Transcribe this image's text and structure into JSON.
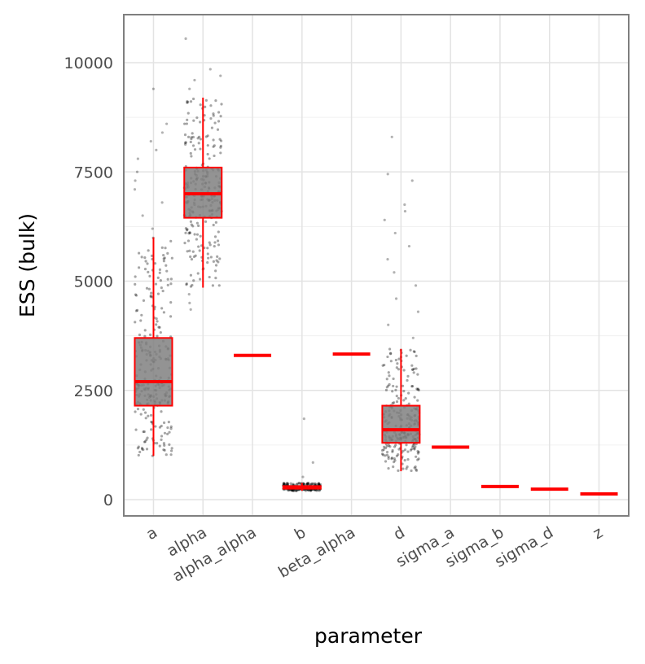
{
  "chart_data": {
    "type": "boxplot",
    "xlabel": "parameter",
    "ylabel": "ESS (bulk)",
    "ylim": [
      -400,
      11000
    ],
    "y_ticks": [
      0,
      2500,
      5000,
      7500,
      10000
    ],
    "y_tick_labels": [
      "0",
      "2500",
      "5000",
      "7500",
      "10000"
    ],
    "grid": true,
    "box_color": "#ff0000",
    "box_fill": "#808080",
    "point_color": "#000000",
    "categories": [
      "a",
      "alpha",
      "alpha_alpha",
      "b",
      "beta_alpha",
      "d",
      "sigma_a",
      "sigma_b",
      "sigma_d",
      "z"
    ],
    "boxes": [
      {
        "category": "a",
        "whisker_low": 1000,
        "q1": 2150,
        "median": 2700,
        "q3": 3700,
        "whisker_high": 6000,
        "outliers": [
          6200,
          6500,
          6800,
          7100,
          7300,
          7500,
          7800,
          8000,
          8200,
          8400,
          8600,
          9400
        ]
      },
      {
        "category": "alpha",
        "whisker_low": 4850,
        "q1": 6450,
        "median": 7000,
        "q3": 7600,
        "whisker_high": 9200,
        "outliers": [
          4350,
          4500,
          4700,
          9400,
          9600,
          9700,
          9850,
          10550
        ]
      },
      {
        "category": "alpha_alpha",
        "whisker_low": 3300,
        "q1": 3300,
        "median": 3300,
        "q3": 3300,
        "whisker_high": 3300,
        "outliers": []
      },
      {
        "category": "b",
        "whisker_low": 200,
        "q1": 250,
        "median": 280,
        "q3": 310,
        "whisker_high": 380,
        "outliers": [
          520,
          850,
          1850
        ]
      },
      {
        "category": "beta_alpha",
        "whisker_low": 3330,
        "q1": 3330,
        "median": 3330,
        "q3": 3330,
        "whisker_high": 3330,
        "outliers": []
      },
      {
        "category": "d",
        "whisker_low": 650,
        "q1": 1300,
        "median": 1600,
        "q3": 2150,
        "whisker_high": 3450,
        "outliers": [
          3700,
          4000,
          4300,
          4600,
          4900,
          5200,
          5500,
          5800,
          6100,
          6400,
          6600,
          6750,
          7300,
          7450,
          8300
        ]
      },
      {
        "category": "sigma_a",
        "whisker_low": 1200,
        "q1": 1200,
        "median": 1200,
        "q3": 1200,
        "whisker_high": 1200,
        "outliers": []
      },
      {
        "category": "sigma_b",
        "whisker_low": 300,
        "q1": 300,
        "median": 300,
        "q3": 300,
        "whisker_high": 300,
        "outliers": []
      },
      {
        "category": "sigma_d",
        "whisker_low": 240,
        "q1": 240,
        "median": 240,
        "q3": 240,
        "whisker_high": 240,
        "outliers": []
      },
      {
        "category": "z",
        "whisker_low": 130,
        "q1": 130,
        "median": 130,
        "q3": 130,
        "whisker_high": 130,
        "outliers": []
      }
    ]
  }
}
